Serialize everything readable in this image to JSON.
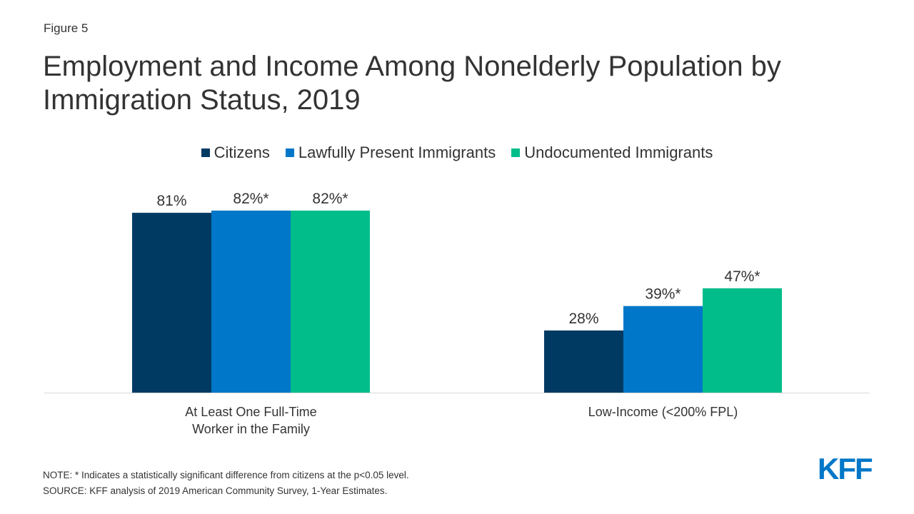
{
  "figure_label": "Figure 5",
  "title": "Employment and Income Among Nonelderly Population by Immigration Status, 2019",
  "note": "NOTE: * Indicates a statistically significant difference from citizens at the p<0.05 level.",
  "source": "SOURCE: KFF analysis of 2019 American Community Survey, 1-Year Estimates.",
  "logo": "KFF",
  "chart_data": {
    "type": "bar",
    "title": "Employment and Income Among Nonelderly Population by Immigration Status, 2019",
    "xlabel": "",
    "ylabel": "",
    "ylim": [
      0,
      100
    ],
    "grid": false,
    "legend_position": "top-center",
    "categories": [
      "At Least One Full-Time Worker in the Family",
      "Low-Income (<200% FPL)"
    ],
    "category_lines": [
      [
        "At Least One Full-Time",
        "Worker in the Family"
      ],
      [
        "Low-Income (<200% FPL)"
      ]
    ],
    "series": [
      {
        "name": "Citizens",
        "color": "#003a63",
        "values": [
          81,
          28
        ],
        "labels": [
          "81%",
          "28%"
        ]
      },
      {
        "name": "Lawfully Present Immigrants",
        "color": "#0077c8",
        "values": [
          82,
          39
        ],
        "labels": [
          "82%*",
          "39%*"
        ]
      },
      {
        "name": "Undocumented Immigrants",
        "color": "#00bd8a",
        "values": [
          82,
          47
        ],
        "labels": [
          "82%*",
          "47%*"
        ]
      }
    ]
  }
}
